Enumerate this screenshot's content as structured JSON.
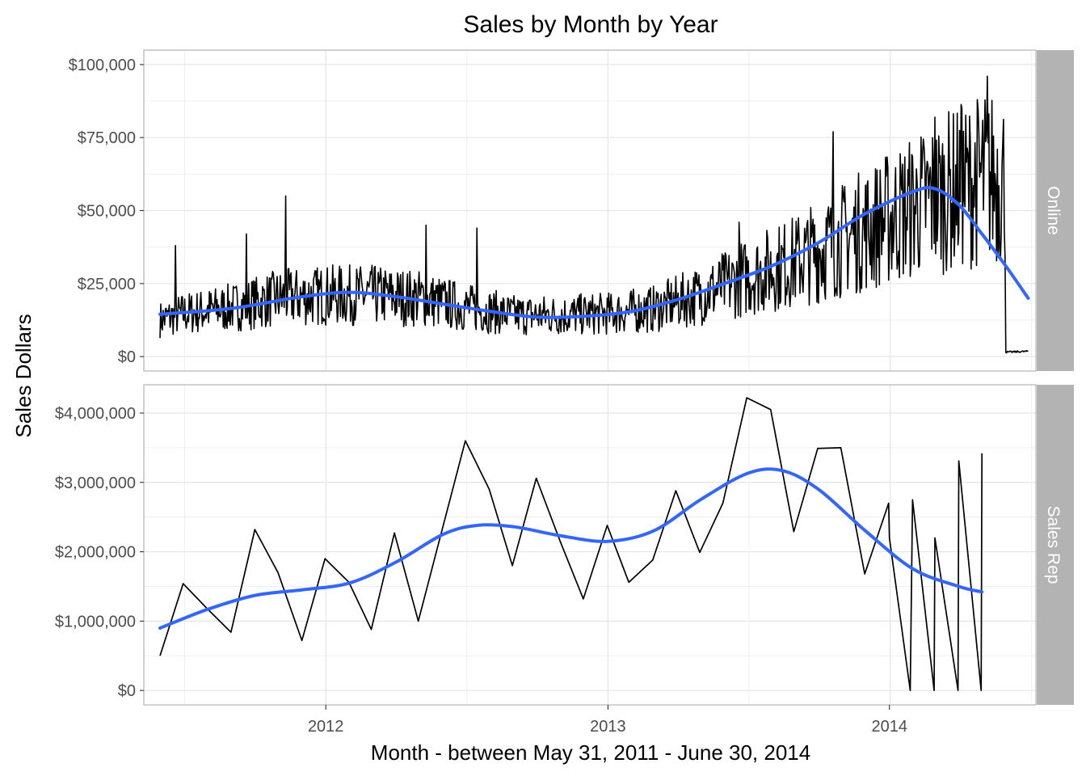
{
  "title": "Sales by Month by Year",
  "xlabel": "Month - between May 31, 2011 - June 30, 2014",
  "ylabel": "Sales Dollars",
  "colors": {
    "raw_line": "#000000",
    "smooth_line": "#3366FF",
    "strip_bg": "#B3B3B3",
    "grid": "#E5E5E5",
    "panel_border": "#B3B3B3",
    "axis_text": "#4D4D4D"
  },
  "chart_data": {
    "type": "line",
    "title": "Sales by Month by Year",
    "xlabel": "Month - between May 31, 2011 - June 30, 2014",
    "ylabel": "Sales Dollars",
    "x_range": [
      "2011-05-10",
      "2014-07-10"
    ],
    "x_ticks": [
      {
        "date": "2012-01-01",
        "label": "2012"
      },
      {
        "date": "2013-01-01",
        "label": "2013"
      },
      {
        "date": "2014-01-01",
        "label": "2014"
      }
    ],
    "grid": true,
    "legend": "none",
    "panels": [
      {
        "name": "Online",
        "ylim": [
          0,
          100000
        ],
        "y_ticks": [
          0,
          25000,
          50000,
          75000,
          100000
        ],
        "y_tick_labels": [
          "$0",
          "$25,000",
          "$50,000",
          "$75,000",
          "$100,000"
        ],
        "raw_description": "daily online sales",
        "raw_anchor_series": [
          [
            "2011-05-31",
            12000
          ],
          [
            "2011-07-01",
            14000
          ],
          [
            "2011-09-01",
            16000
          ],
          [
            "2011-11-01",
            19000
          ],
          [
            "2012-01-01",
            20000
          ],
          [
            "2012-03-01",
            20000
          ],
          [
            "2012-05-01",
            19000
          ],
          [
            "2012-07-01",
            16000
          ],
          [
            "2012-09-01",
            13500
          ],
          [
            "2012-11-01",
            13500
          ],
          [
            "2013-01-01",
            14000
          ],
          [
            "2013-03-01",
            15500
          ],
          [
            "2013-05-01",
            20000
          ],
          [
            "2013-07-01",
            26000
          ],
          [
            "2013-09-01",
            31000
          ],
          [
            "2013-11-01",
            38000
          ],
          [
            "2014-01-01",
            45000
          ],
          [
            "2014-03-01",
            52000
          ],
          [
            "2014-05-01",
            58000
          ],
          [
            "2014-05-31",
            58000
          ],
          [
            "2014-06-01",
            1500
          ],
          [
            "2014-06-30",
            1800
          ]
        ],
        "raw_spikes": [
          [
            "2011-06-20",
            38000
          ],
          [
            "2011-09-20",
            42000
          ],
          [
            "2011-11-10",
            55000
          ],
          [
            "2012-05-10",
            45000
          ],
          [
            "2012-07-15",
            44000
          ],
          [
            "2013-06-20",
            46000
          ],
          [
            "2013-10-20",
            77000
          ],
          [
            "2014-03-01",
            82000
          ],
          [
            "2014-04-05",
            85000
          ],
          [
            "2014-05-08",
            96000
          ]
        ],
        "smooth": [
          [
            "2011-05-31",
            14500
          ],
          [
            "2011-09-01",
            16500
          ],
          [
            "2011-12-01",
            20500
          ],
          [
            "2012-02-01",
            22000
          ],
          [
            "2012-04-01",
            20500
          ],
          [
            "2012-06-01",
            18000
          ],
          [
            "2012-08-01",
            15500
          ],
          [
            "2012-10-01",
            13500
          ],
          [
            "2012-12-01",
            13800
          ],
          [
            "2013-02-01",
            15500
          ],
          [
            "2013-04-01",
            19500
          ],
          [
            "2013-06-01",
            25000
          ],
          [
            "2013-08-01",
            31000
          ],
          [
            "2013-10-01",
            39000
          ],
          [
            "2013-12-01",
            49000
          ],
          [
            "2014-02-01",
            56500
          ],
          [
            "2014-03-01",
            57500
          ],
          [
            "2014-04-01",
            52000
          ],
          [
            "2014-05-01",
            42000
          ],
          [
            "2014-06-01",
            31000
          ],
          [
            "2014-06-30",
            20000
          ]
        ]
      },
      {
        "name": "Sales Rep",
        "ylim": [
          0,
          4200000
        ],
        "y_ticks": [
          0,
          1000000,
          2000000,
          3000000,
          4000000
        ],
        "y_tick_labels": [
          "$0",
          "$1,000,000",
          "$2,000,000",
          "$3,000,000",
          "$4,000,000"
        ],
        "raw": [
          [
            "2011-05-31",
            500000
          ],
          [
            "2011-06-30",
            1540000
          ],
          [
            "2011-08-01",
            1170000
          ],
          [
            "2011-08-31",
            840000
          ],
          [
            "2011-10-01",
            2320000
          ],
          [
            "2011-10-31",
            1700000
          ],
          [
            "2011-12-01",
            720000
          ],
          [
            "2011-12-31",
            1900000
          ],
          [
            "2012-01-31",
            1560000
          ],
          [
            "2012-02-29",
            880000
          ],
          [
            "2012-03-30",
            2270000
          ],
          [
            "2012-04-30",
            1000000
          ],
          [
            "2012-05-30",
            2280000
          ],
          [
            "2012-06-30",
            3600000
          ],
          [
            "2012-07-31",
            2900000
          ],
          [
            "2012-08-30",
            1800000
          ],
          [
            "2012-09-30",
            3060000
          ],
          [
            "2012-10-31",
            2150000
          ],
          [
            "2012-11-30",
            1320000
          ],
          [
            "2012-12-31",
            2380000
          ],
          [
            "2013-01-28",
            1560000
          ],
          [
            "2013-02-28",
            1880000
          ],
          [
            "2013-03-30",
            2880000
          ],
          [
            "2013-04-30",
            1990000
          ],
          [
            "2013-05-30",
            2700000
          ],
          [
            "2013-06-30",
            4220000
          ],
          [
            "2013-07-31",
            4050000
          ],
          [
            "2013-08-30",
            2290000
          ],
          [
            "2013-09-30",
            3490000
          ],
          [
            "2013-10-30",
            3500000
          ],
          [
            "2013-11-30",
            1680000
          ],
          [
            "2013-12-31",
            2700000
          ],
          [
            "2014-01-01",
            2200000
          ],
          [
            "2014-01-28",
            0
          ],
          [
            "2014-01-31",
            2750000
          ],
          [
            "2014-02-28",
            0
          ],
          [
            "2014-03-01",
            2200000
          ],
          [
            "2014-03-31",
            0
          ],
          [
            "2014-04-01",
            3310000
          ],
          [
            "2014-04-30",
            0
          ],
          [
            "2014-05-01",
            3420000
          ]
        ],
        "smooth": [
          [
            "2011-05-31",
            900000
          ],
          [
            "2011-08-01",
            1170000
          ],
          [
            "2011-10-01",
            1370000
          ],
          [
            "2011-12-01",
            1450000
          ],
          [
            "2012-02-01",
            1550000
          ],
          [
            "2012-04-01",
            1850000
          ],
          [
            "2012-06-01",
            2250000
          ],
          [
            "2012-07-15",
            2380000
          ],
          [
            "2012-09-01",
            2360000
          ],
          [
            "2012-11-01",
            2230000
          ],
          [
            "2013-01-01",
            2150000
          ],
          [
            "2013-03-01",
            2300000
          ],
          [
            "2013-05-01",
            2750000
          ],
          [
            "2013-07-01",
            3130000
          ],
          [
            "2013-08-15",
            3170000
          ],
          [
            "2013-10-01",
            2900000
          ],
          [
            "2013-12-01",
            2300000
          ],
          [
            "2014-02-01",
            1750000
          ],
          [
            "2014-04-01",
            1500000
          ],
          [
            "2014-05-01",
            1420000
          ]
        ]
      }
    ]
  }
}
